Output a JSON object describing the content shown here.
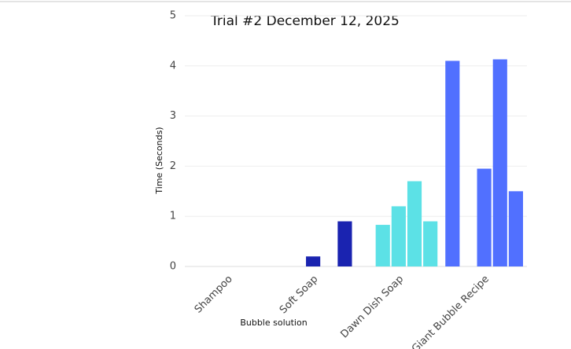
{
  "chart_data": {
    "type": "bar",
    "title": "Trial #2 December 12, 2025",
    "x_label": "Bubble solution",
    "y_label": "Time (Seconds)",
    "categories": [
      "Shampoo",
      "Soft Soap",
      "Dawn Dish Soap",
      "Giant Bubble Recipe"
    ],
    "colors": [
      "#8c52ff",
      "#1a23b0",
      "#5ce1e6",
      "#5170ff"
    ],
    "values": [
      [
        0,
        0,
        0,
        0,
        0
      ],
      [
        null,
        null,
        0.2,
        null,
        0.9
      ],
      [
        null,
        0.83,
        1.2,
        1.7,
        0.9
      ],
      [
        4.1,
        null,
        1.95,
        4.13,
        1.5
      ]
    ],
    "ylim": [
      0,
      5
    ],
    "yticks": [
      0,
      1,
      2,
      3,
      4,
      5
    ],
    "grid": true
  }
}
